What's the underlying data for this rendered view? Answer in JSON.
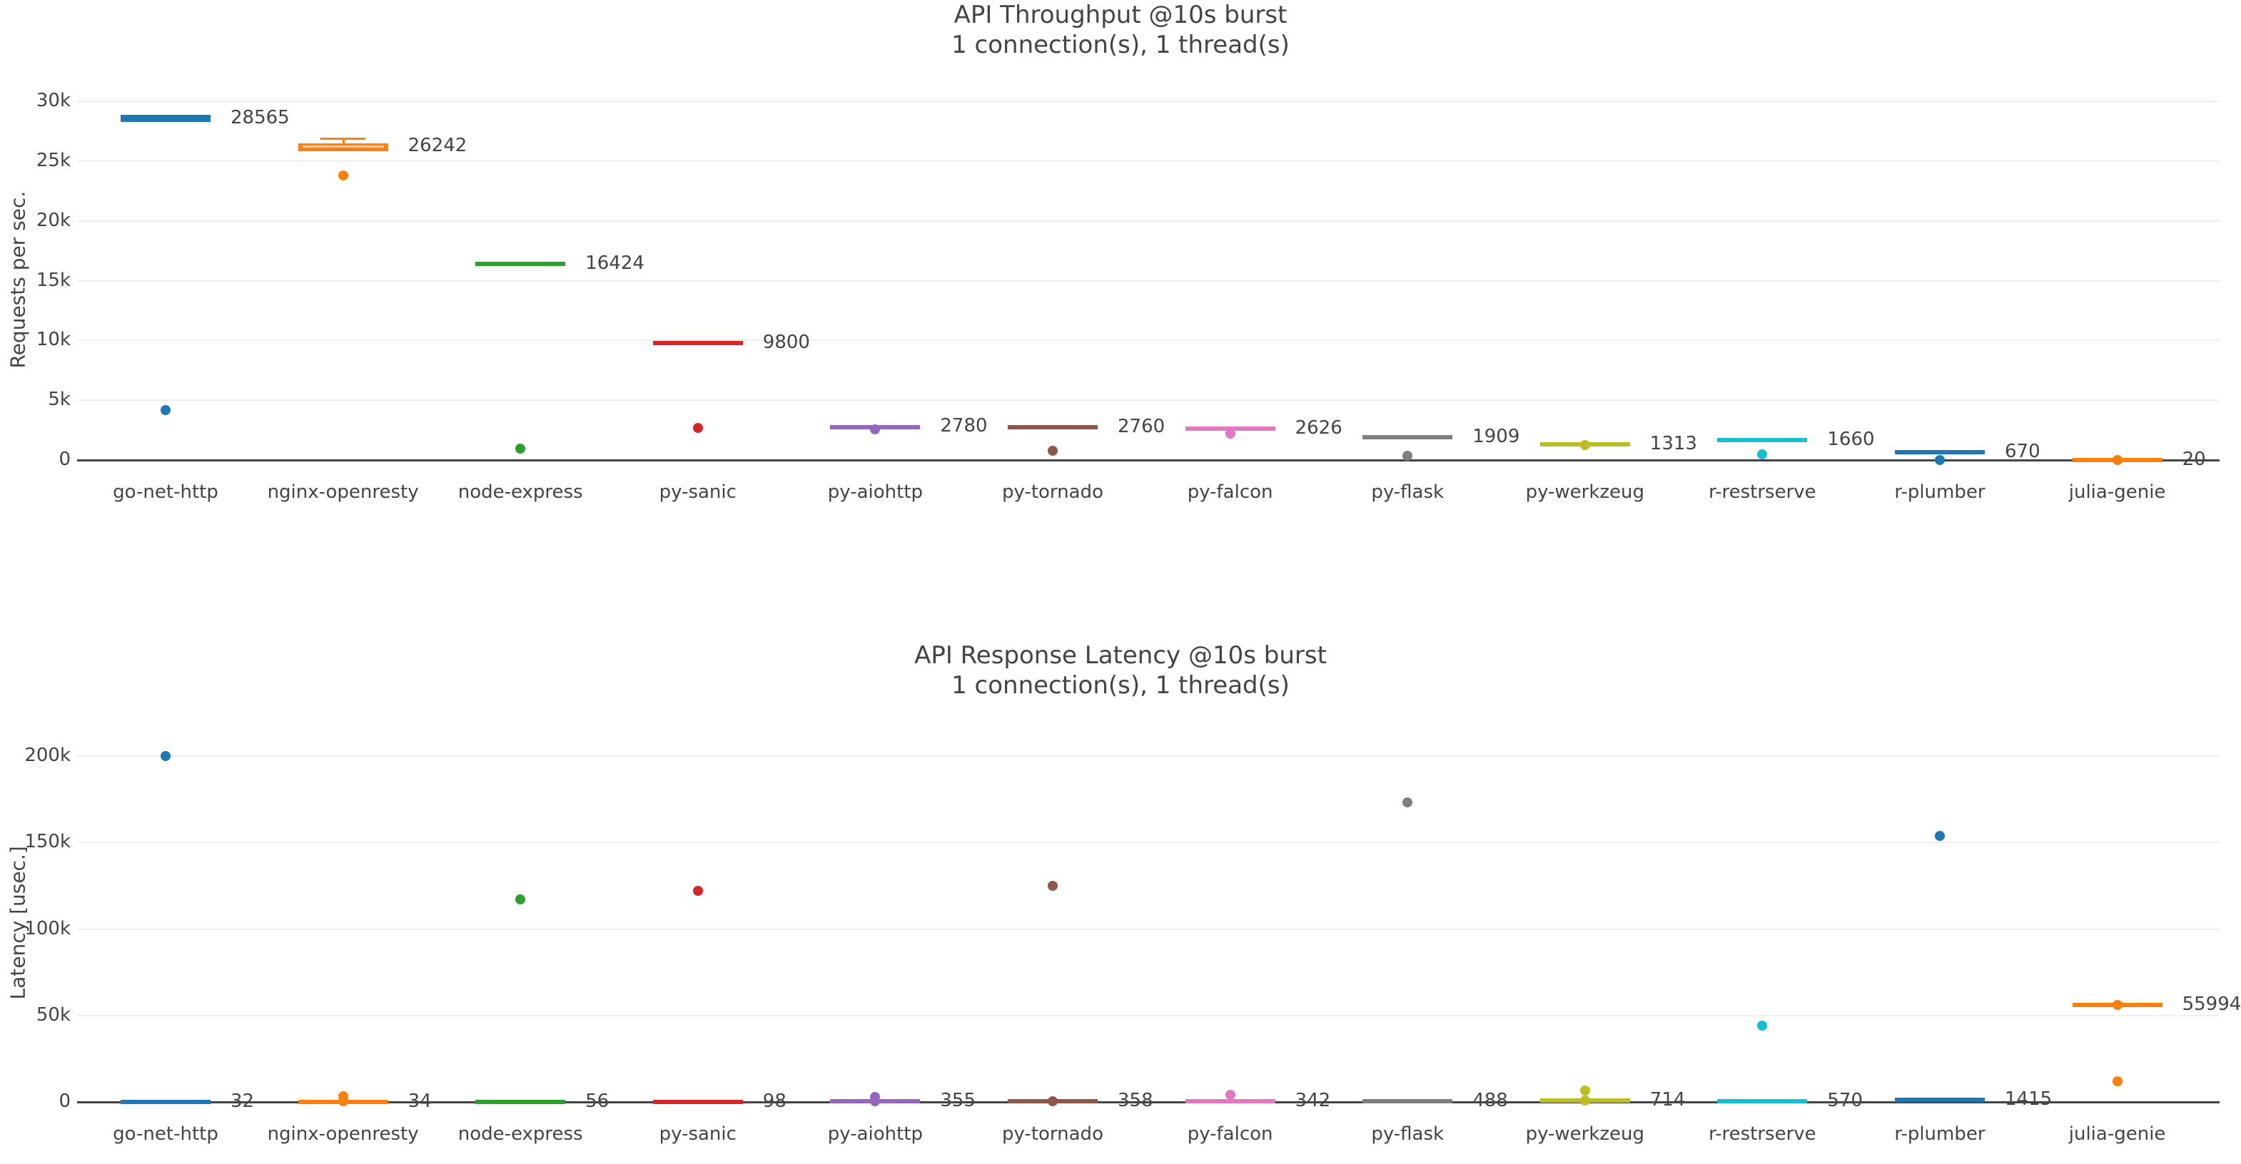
{
  "chart_data": [
    {
      "type": "box",
      "title": "API Throughput @10s burst",
      "subtitle": "1 connection(s), 1 thread(s)",
      "xlabel": "",
      "ylabel": "Requests per sec.",
      "ylim": [
        0,
        30000
      ],
      "yticks": [
        "0",
        "5k",
        "10k",
        "15k",
        "20k",
        "25k",
        "30k"
      ],
      "ytick_values": [
        0,
        5000,
        10000,
        15000,
        20000,
        25000,
        30000
      ],
      "grid": true,
      "categories": [
        "go-net-http",
        "nginx-openresty",
        "node-express",
        "py-sanic",
        "py-aiohttp",
        "py-tornado",
        "py-falcon",
        "py-flask",
        "py-werkzeug",
        "r-restrserve",
        "r-plumber",
        "julia-genie"
      ],
      "colors": [
        "#1f77b4",
        "#ff7f0e",
        "#2ca02c",
        "#d62728",
        "#9467bd",
        "#8c564b",
        "#e377c2",
        "#7f7f7f",
        "#bcbd22",
        "#17becf",
        "#1f77b4",
        "#ff7f0e"
      ],
      "series": [
        {
          "name": "go-net-http",
          "median": 28565,
          "q1": 28300,
          "q3": 28850,
          "whisker_high": 28950,
          "outliers": [
            4200
          ],
          "annotation": "28565"
        },
        {
          "name": "nginx-openresty",
          "median": 26242,
          "q1": 25800,
          "q3": 26500,
          "whisker_high": 26900,
          "outliers": [
            23800
          ],
          "annotation": "26242"
        },
        {
          "name": "node-express",
          "median": 16424,
          "q1": 16200,
          "q3": 16550,
          "whisker_high": 16650,
          "outliers": [
            950
          ],
          "annotation": "16424"
        },
        {
          "name": "py-sanic",
          "median": 9800,
          "q1": 9650,
          "q3": 9870,
          "whisker_high": 9950,
          "outliers": [
            2700
          ],
          "annotation": "9800"
        },
        {
          "name": "py-aiohttp",
          "median": 2780,
          "q1": 2700,
          "q3": 2820,
          "whisker_high": 2850,
          "outliers": [
            2580
          ],
          "annotation": "2780"
        },
        {
          "name": "py-tornado",
          "median": 2760,
          "q1": 2700,
          "q3": 2800,
          "whisker_high": 2830,
          "outliers": [
            780
          ],
          "annotation": "2760"
        },
        {
          "name": "py-falcon",
          "median": 2626,
          "q1": 2540,
          "q3": 2680,
          "whisker_high": 2710,
          "outliers": [
            2200
          ],
          "annotation": "2626"
        },
        {
          "name": "py-flask",
          "median": 1909,
          "q1": 1850,
          "q3": 1950,
          "whisker_high": 1980,
          "outliers": [
            380
          ],
          "annotation": "1909"
        },
        {
          "name": "py-werkzeug",
          "median": 1313,
          "q1": 1250,
          "q3": 1350,
          "whisker_high": 1380,
          "outliers": [
            1250
          ],
          "annotation": "1313"
        },
        {
          "name": "r-restrserve",
          "median": 1660,
          "q1": 1600,
          "q3": 1700,
          "whisker_high": 1750,
          "outliers": [
            500
          ],
          "annotation": "1660"
        },
        {
          "name": "r-plumber",
          "median": 670,
          "q1": 640,
          "q3": 700,
          "whisker_high": 720,
          "outliers": [
            0
          ],
          "annotation": "670"
        },
        {
          "name": "julia-genie",
          "median": 20,
          "q1": 0,
          "q3": 40,
          "whisker_high": 40,
          "outliers": [
            20
          ],
          "annotation": "20"
        }
      ]
    },
    {
      "type": "box",
      "title": "API Response Latency @10s burst",
      "subtitle": "1 connection(s), 1 thread(s)",
      "xlabel": "",
      "ylabel": "Latency [usec.]",
      "ylim": [
        0,
        200000
      ],
      "yticks": [
        "0",
        "50k",
        "100k",
        "150k",
        "200k"
      ],
      "ytick_values": [
        0,
        50000,
        100000,
        150000,
        200000
      ],
      "grid": true,
      "categories": [
        "go-net-http",
        "nginx-openresty",
        "node-express",
        "py-sanic",
        "py-aiohttp",
        "py-tornado",
        "py-falcon",
        "py-flask",
        "py-werkzeug",
        "r-restrserve",
        "r-plumber",
        "julia-genie"
      ],
      "colors": [
        "#1f77b4",
        "#ff7f0e",
        "#2ca02c",
        "#d62728",
        "#9467bd",
        "#8c564b",
        "#e377c2",
        "#7f7f7f",
        "#bcbd22",
        "#17becf",
        "#1f77b4",
        "#ff7f0e"
      ],
      "series": [
        {
          "name": "go-net-http",
          "median": 32,
          "q1": 20,
          "q3": 40,
          "outliers": [
            200000
          ],
          "annotation": "32"
        },
        {
          "name": "nginx-openresty",
          "median": 34,
          "q1": 20,
          "q3": 50,
          "outliers": [
            3500,
            300
          ],
          "annotation": "34"
        },
        {
          "name": "node-express",
          "median": 56,
          "q1": 40,
          "q3": 70,
          "outliers": [
            117000
          ],
          "annotation": "56"
        },
        {
          "name": "py-sanic",
          "median": 98,
          "q1": 80,
          "q3": 120,
          "outliers": [
            122000
          ],
          "annotation": "98"
        },
        {
          "name": "py-aiohttp",
          "median": 355,
          "q1": 300,
          "q3": 400,
          "outliers": [
            2800,
            400
          ],
          "annotation": "355"
        },
        {
          "name": "py-tornado",
          "median": 358,
          "q1": 300,
          "q3": 400,
          "outliers": [
            125000,
            400
          ],
          "annotation": "358"
        },
        {
          "name": "py-falcon",
          "median": 342,
          "q1": 300,
          "q3": 400,
          "outliers": [
            4200
          ],
          "annotation": "342"
        },
        {
          "name": "py-flask",
          "median": 488,
          "q1": 400,
          "q3": 800,
          "outliers": [
            173000
          ],
          "annotation": "488"
        },
        {
          "name": "py-werkzeug",
          "median": 714,
          "q1": 600,
          "q3": 1200,
          "outliers": [
            6500,
            700
          ],
          "annotation": "714"
        },
        {
          "name": "r-restrserve",
          "median": 570,
          "q1": 500,
          "q3": 700,
          "outliers": [
            44000
          ],
          "annotation": "570"
        },
        {
          "name": "r-plumber",
          "median": 1415,
          "q1": 900,
          "q3": 1800,
          "outliers": [
            154000
          ],
          "annotation": "1415"
        },
        {
          "name": "julia-genie",
          "median": 55994,
          "q1": 55700,
          "q3": 56300,
          "outliers": [
            55994,
            12000
          ],
          "annotation": "55994"
        }
      ]
    }
  ],
  "top": {
    "title": "API Throughput @10s burst",
    "subtitle": "1 connection(s), 1 thread(s)",
    "ylabel": "Requests per sec."
  },
  "bottom": {
    "title": "API Response Latency @10s burst",
    "subtitle": "1 connection(s), 1 thread(s)",
    "ylabel": "Latency [usec.]"
  }
}
